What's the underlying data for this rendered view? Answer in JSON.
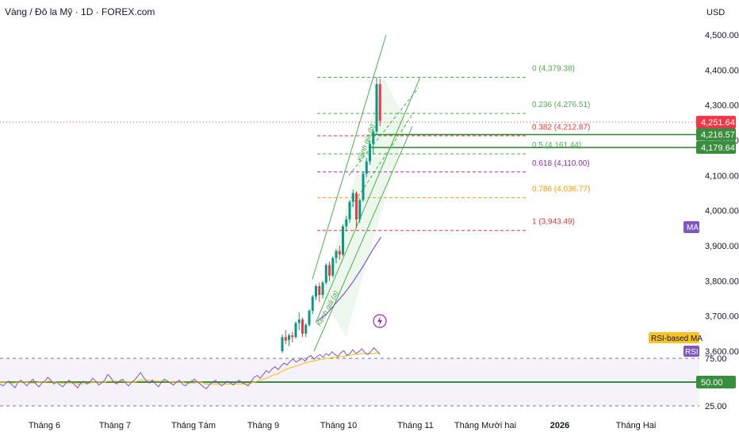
{
  "header": {
    "title": "Vàng / Đô la Mỹ · 1D · FOREX.com",
    "currency": "USD"
  },
  "colors": {
    "up": "#089981",
    "down": "#f23645",
    "channel": "#4caf50",
    "ma": "#7e57c2",
    "rsi": "#7e57c2",
    "rsi_ma": "#f7c325",
    "fib_0": "#4caf50",
    "fib_0236": "#4caf50",
    "fib_0382": "#e53935",
    "fib_05": "#4caf50",
    "fib_0618": "#9c27b0",
    "fib_0786": "#ff9800",
    "fib_1": "#e53935",
    "price_tag": "#f23645",
    "level_tag": "#388e3c"
  },
  "chart_data": {
    "type": "candlestick",
    "title": "Vàng / Đô la Mỹ · 1D · FOREX.com",
    "ylabel": "USD",
    "ylim": [
      3580,
      4540
    ],
    "y_ticks": [
      "4,500.00",
      "4,400.00",
      "4,300.00",
      "4,200.00",
      "4,100.00",
      "4,000.00",
      "3,900.00",
      "3,800.00",
      "3,700.00",
      "3,600.00"
    ],
    "y_tick_values": [
      4500,
      4400,
      4300,
      4200,
      4100,
      4000,
      3900,
      3800,
      3700,
      3600
    ],
    "x_ticks": [
      "Tháng 6",
      "Tháng 7",
      "Tháng Tám",
      "Tháng 9",
      "Tháng 10",
      "Tháng 11",
      "Tháng Mười hai",
      "2026",
      "Tháng Hai"
    ],
    "current_price": "4,251.64",
    "current_price_value": 4251.64,
    "level_tags": [
      {
        "label": "4,216.57",
        "value": 4216.57
      },
      {
        "label": "4,179.64",
        "value": 4179.64
      }
    ],
    "fibonacci": [
      {
        "label": "0 (4,379.38)",
        "value": 4379.38,
        "color_key": "fib_0"
      },
      {
        "label": "0.236 (4,276.51)",
        "value": 4276.51,
        "color_key": "fib_0236"
      },
      {
        "label": "0.382 (4,212.87)",
        "value": 4212.87,
        "color_key": "fib_0382"
      },
      {
        "label": "0.5 (4,161.44)",
        "value": 4161.44,
        "color_key": "fib_05"
      },
      {
        "label": "0.618 (4,110.00)",
        "value": 4110.0,
        "color_key": "fib_0618"
      },
      {
        "label": "0.786 (4,036.77)",
        "value": 4036.77,
        "color_key": "fib_0786"
      },
      {
        "label": "1 (3,943.49)",
        "value": 3943.49,
        "color_key": "fib_1"
      }
    ],
    "channel_labels": [
      "Kênh giá (a)",
      "Kênh giá (b)"
    ],
    "ma_label": "MA",
    "candles": [
      [
        3600,
        3648,
        3595,
        3640
      ],
      [
        3640,
        3660,
        3620,
        3630
      ],
      [
        3632,
        3650,
        3615,
        3645
      ],
      [
        3645,
        3655,
        3625,
        3640
      ],
      [
        3640,
        3685,
        3635,
        3680
      ],
      [
        3680,
        3710,
        3660,
        3690
      ],
      [
        3690,
        3695,
        3640,
        3650
      ],
      [
        3650,
        3680,
        3640,
        3675
      ],
      [
        3675,
        3720,
        3670,
        3715
      ],
      [
        3715,
        3760,
        3705,
        3755
      ],
      [
        3755,
        3790,
        3745,
        3785
      ],
      [
        3785,
        3795,
        3740,
        3760
      ],
      [
        3760,
        3800,
        3750,
        3795
      ],
      [
        3795,
        3850,
        3790,
        3845
      ],
      [
        3845,
        3855,
        3800,
        3815
      ],
      [
        3815,
        3870,
        3810,
        3865
      ],
      [
        3865,
        3890,
        3850,
        3885
      ],
      [
        3885,
        3900,
        3860,
        3875
      ],
      [
        3875,
        3960,
        3870,
        3955
      ],
      [
        3955,
        3985,
        3940,
        3975
      ],
      [
        3975,
        4030,
        3965,
        4025
      ],
      [
        4025,
        4060,
        4010,
        4050
      ],
      [
        4050,
        4055,
        3950,
        3975
      ],
      [
        3975,
        4035,
        3965,
        4030
      ],
      [
        4030,
        4110,
        4025,
        4105
      ],
      [
        4105,
        4150,
        4095,
        4140
      ],
      [
        4140,
        4200,
        4130,
        4190
      ],
      [
        4190,
        4230,
        4160,
        4225
      ],
      [
        4225,
        4380,
        4215,
        4360
      ],
      [
        4360,
        4375,
        4240,
        4255
      ]
    ],
    "ma_values": [
      3685,
      3705,
      3735,
      3765,
      3800,
      3840,
      3885,
      3925
    ],
    "rsi": {
      "label": "RSI",
      "ma_label": "RSI-based MA",
      "tick_labels": [
        "75.00",
        "50.00",
        "25.00"
      ],
      "tick_values": [
        75,
        50,
        25
      ],
      "ylim": [
        20,
        90
      ],
      "values": [
        48,
        46,
        49,
        51,
        47,
        44,
        50,
        52,
        49,
        46,
        50,
        53,
        48,
        45,
        49,
        51,
        55,
        52,
        48,
        50,
        47,
        45,
        49,
        52,
        50,
        47,
        44,
        49,
        51,
        48,
        50,
        54,
        51,
        47,
        49,
        52,
        58,
        55,
        50,
        48,
        51,
        53,
        49,
        46,
        50,
        52,
        56,
        60,
        55,
        51,
        49,
        52,
        48,
        45,
        50,
        53,
        51,
        49,
        47,
        50,
        52,
        48,
        46,
        49,
        51,
        53,
        50,
        48,
        45,
        43,
        47,
        50,
        52,
        49,
        46,
        48,
        51,
        49,
        47,
        50,
        52,
        49,
        48,
        46,
        51,
        55,
        57,
        54,
        58,
        62,
        60,
        64,
        66,
        63,
        67,
        70,
        68,
        72,
        74,
        71,
        73,
        75,
        72,
        76,
        78,
        74,
        77,
        79,
        76,
        80,
        78,
        82,
        79,
        77,
        81,
        83,
        78,
        80,
        84,
        80,
        82,
        85,
        81,
        79,
        82,
        86,
        83,
        79
      ],
      "ma_values": [
        50,
        50,
        50,
        49,
        49,
        49,
        50,
        50,
        50,
        50,
        49,
        49,
        49,
        50,
        50,
        50,
        51,
        51,
        50,
        50,
        49,
        49,
        49,
        49,
        49,
        49,
        48,
        48,
        49,
        49,
        49,
        50,
        50,
        50,
        50,
        50,
        51,
        51,
        51,
        51,
        51,
        51,
        50,
        50,
        50,
        50,
        51,
        52,
        52,
        52,
        52,
        52,
        51,
        51,
        51,
        51,
        51,
        50,
        50,
        50,
        50,
        50,
        49,
        49,
        49,
        49,
        50,
        50,
        49,
        48,
        48,
        48,
        48,
        48,
        48,
        48,
        48,
        48,
        48,
        48,
        48,
        48,
        48,
        48,
        49,
        50,
        51,
        52,
        53,
        54,
        55,
        57,
        58,
        59,
        61,
        62,
        64,
        65,
        66,
        67,
        68,
        69,
        70,
        71,
        72,
        72,
        73,
        74,
        74,
        75,
        75,
        76,
        76,
        76,
        77,
        77,
        78,
        78,
        79,
        79,
        79,
        80,
        80,
        80,
        80,
        80,
        81,
        81
      ]
    }
  }
}
